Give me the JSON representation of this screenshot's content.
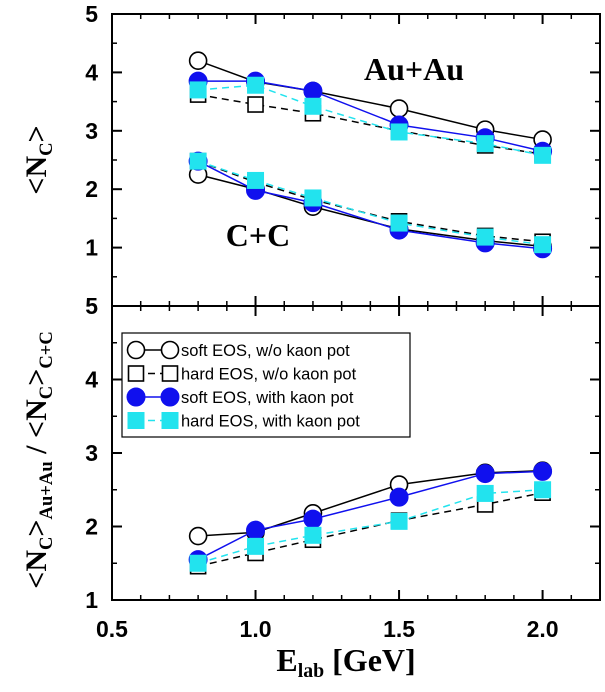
{
  "chart_data": [
    {
      "type": "line",
      "title": "",
      "xlabel": "",
      "ylabel": "<N_C>",
      "ylim": [
        0,
        5
      ],
      "yticks": [
        "1",
        "2",
        "3",
        "4",
        "5"
      ],
      "annotations": [
        "Au+Au",
        "C+C"
      ],
      "x": [
        0.8,
        1.0,
        1.2,
        1.5,
        1.8,
        2.0
      ],
      "series": [
        {
          "name": "soft EOS, w/o kaon pot",
          "system": "Au+Au",
          "values": [
            4.2,
            3.84,
            3.68,
            3.38,
            3.02,
            2.85
          ]
        },
        {
          "name": "hard EOS, w/o kaon pot",
          "system": "Au+Au",
          "values": [
            3.62,
            3.45,
            3.3,
            3.0,
            2.75,
            2.6
          ]
        },
        {
          "name": "soft EOS, with kaon pot",
          "system": "Au+Au",
          "values": [
            3.85,
            3.85,
            3.68,
            3.1,
            2.88,
            2.65
          ]
        },
        {
          "name": "hard EOS, with kaon pot",
          "system": "Au+Au",
          "values": [
            3.7,
            3.78,
            3.42,
            2.98,
            2.78,
            2.58
          ]
        },
        {
          "name": "soft EOS, w/o kaon pot",
          "system": "C+C",
          "values": [
            2.25,
            2.0,
            1.7,
            1.32,
            1.12,
            1.02
          ]
        },
        {
          "name": "hard EOS, w/o kaon pot",
          "system": "C+C",
          "values": [
            2.48,
            2.12,
            1.82,
            1.45,
            1.2,
            1.1
          ]
        },
        {
          "name": "soft EOS, with kaon pot",
          "system": "C+C",
          "values": [
            2.48,
            1.98,
            1.77,
            1.3,
            1.08,
            0.98
          ]
        },
        {
          "name": "hard EOS, with kaon pot",
          "system": "C+C",
          "values": [
            2.48,
            2.15,
            1.85,
            1.42,
            1.18,
            1.05
          ]
        }
      ]
    },
    {
      "type": "line",
      "title": "",
      "xlabel": "E_lab [GeV]",
      "ylabel": "<N_C>_Au+Au / <N_C>_C+C",
      "xlim": [
        0.5,
        2.2
      ],
      "ylim": [
        1,
        5
      ],
      "xticks": [
        "0.5",
        "1.0",
        "1.5",
        "2.0"
      ],
      "yticks": [
        "1",
        "2",
        "3",
        "4",
        "5"
      ],
      "legend": "top-left",
      "x": [
        0.8,
        1.0,
        1.2,
        1.5,
        1.8,
        2.0
      ],
      "series": [
        {
          "name": "soft EOS, w/o kaon pot",
          "values": [
            1.87,
            1.92,
            2.18,
            2.57,
            2.73,
            2.76
          ]
        },
        {
          "name": "hard EOS, w/o kaon pot",
          "values": [
            1.46,
            1.64,
            1.82,
            2.08,
            2.3,
            2.46
          ]
        },
        {
          "name": "soft EOS, with kaon pot",
          "values": [
            1.55,
            1.95,
            2.1,
            2.4,
            2.72,
            2.75
          ]
        },
        {
          "name": "hard EOS, with kaon pot",
          "values": [
            1.5,
            1.73,
            1.88,
            2.07,
            2.45,
            2.5
          ]
        }
      ]
    }
  ],
  "styles": {
    "soft EOS, w/o kaon pot": {
      "color": "#000000",
      "dash": false,
      "marker": "open-circle"
    },
    "hard EOS, w/o kaon pot": {
      "color": "#000000",
      "dash": true,
      "marker": "open-square"
    },
    "soft EOS, with kaon pot": {
      "color": "#1010ee",
      "dash": false,
      "marker": "filled-circle"
    },
    "hard EOS, with kaon pot": {
      "color": "#22e3ee",
      "dash": true,
      "marker": "filled-square"
    }
  }
}
